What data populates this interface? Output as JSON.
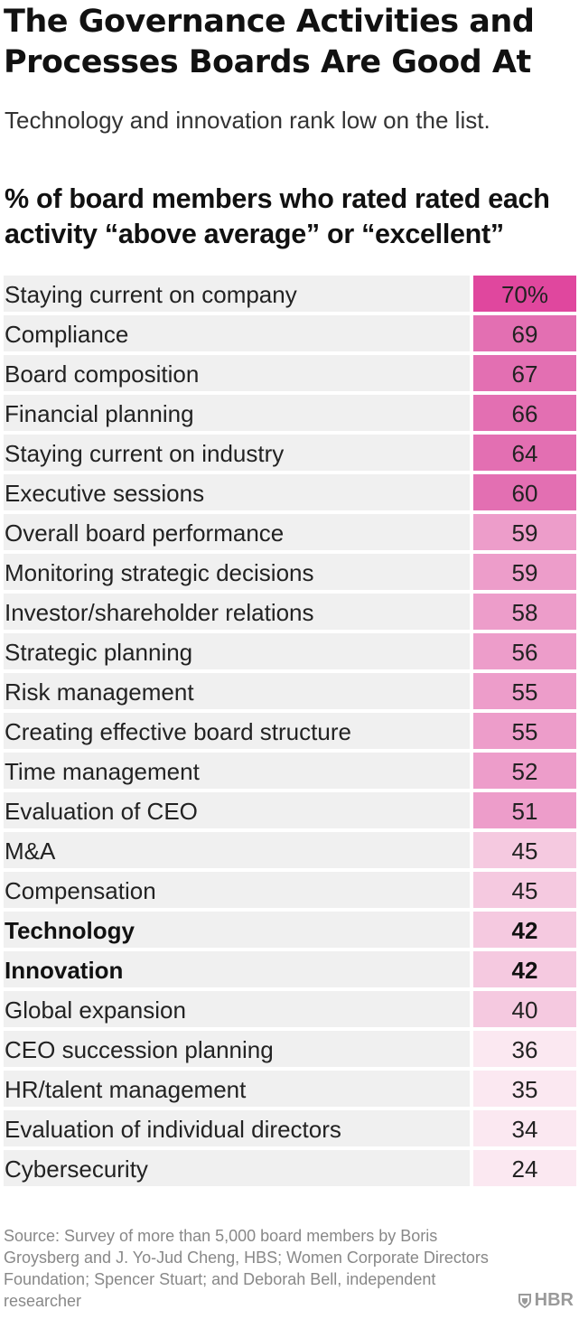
{
  "title": "The Governance Activities and Processes Boards Are Good At",
  "subtitle": "Technology and innovation rank low on the list.",
  "chart_heading": "% of board members who rated rated each activity “above average” or “excellent”",
  "chart_data": {
    "type": "table",
    "unit": "%",
    "rows": [
      {
        "label": "Staying current on company",
        "value": 70,
        "display": "70%",
        "bold": false
      },
      {
        "label": "Compliance",
        "value": 69,
        "display": "69",
        "bold": false
      },
      {
        "label": "Board composition",
        "value": 67,
        "display": "67",
        "bold": false
      },
      {
        "label": "Financial planning",
        "value": 66,
        "display": "66",
        "bold": false
      },
      {
        "label": "Staying current on industry",
        "value": 64,
        "display": "64",
        "bold": false
      },
      {
        "label": "Executive sessions",
        "value": 60,
        "display": "60",
        "bold": false
      },
      {
        "label": "Overall board performance",
        "value": 59,
        "display": "59",
        "bold": false
      },
      {
        "label": "Monitoring strategic decisions",
        "value": 59,
        "display": "59",
        "bold": false
      },
      {
        "label": "Investor/shareholder relations",
        "value": 58,
        "display": "58",
        "bold": false
      },
      {
        "label": "Strategic planning",
        "value": 56,
        "display": "56",
        "bold": false
      },
      {
        "label": "Risk management",
        "value": 55,
        "display": "55",
        "bold": false
      },
      {
        "label": "Creating effective board structure",
        "value": 55,
        "display": "55",
        "bold": false
      },
      {
        "label": "Time management",
        "value": 52,
        "display": "52",
        "bold": false
      },
      {
        "label": "Evaluation of CEO",
        "value": 51,
        "display": "51",
        "bold": false
      },
      {
        "label": "M&A",
        "value": 45,
        "display": "45",
        "bold": false
      },
      {
        "label": "Compensation",
        "value": 45,
        "display": "45",
        "bold": false
      },
      {
        "label": "Technology",
        "value": 42,
        "display": "42",
        "bold": true
      },
      {
        "label": "Innovation",
        "value": 42,
        "display": "42",
        "bold": true
      },
      {
        "label": "Global expansion",
        "value": 40,
        "display": "40",
        "bold": false
      },
      {
        "label": "CEO succession planning",
        "value": 36,
        "display": "36",
        "bold": false
      },
      {
        "label": "HR/talent management",
        "value": 35,
        "display": "35",
        "bold": false
      },
      {
        "label": "Evaluation of individual directors",
        "value": 34,
        "display": "34",
        "bold": false
      },
      {
        "label": "Cybersecurity",
        "value": 24,
        "display": "24",
        "bold": false
      }
    ],
    "color_scale": [
      {
        "min": 70,
        "color": "#e0479e"
      },
      {
        "min": 60,
        "color": "#e36fb2"
      },
      {
        "min": 50,
        "color": "#ed9dca"
      },
      {
        "min": 40,
        "color": "#f5c9e0"
      },
      {
        "min": 0,
        "color": "#fbe8f1"
      }
    ]
  },
  "source": "Source: Survey of more than 5,000 board members by Boris Groysberg and J. Yo-Jud Cheng, HBS; Women Corporate Directors Foundation; Spencer Stuart; and Deborah Bell, independent researcher",
  "logo_text": "HBR",
  "logo_icon": "shield-icon"
}
